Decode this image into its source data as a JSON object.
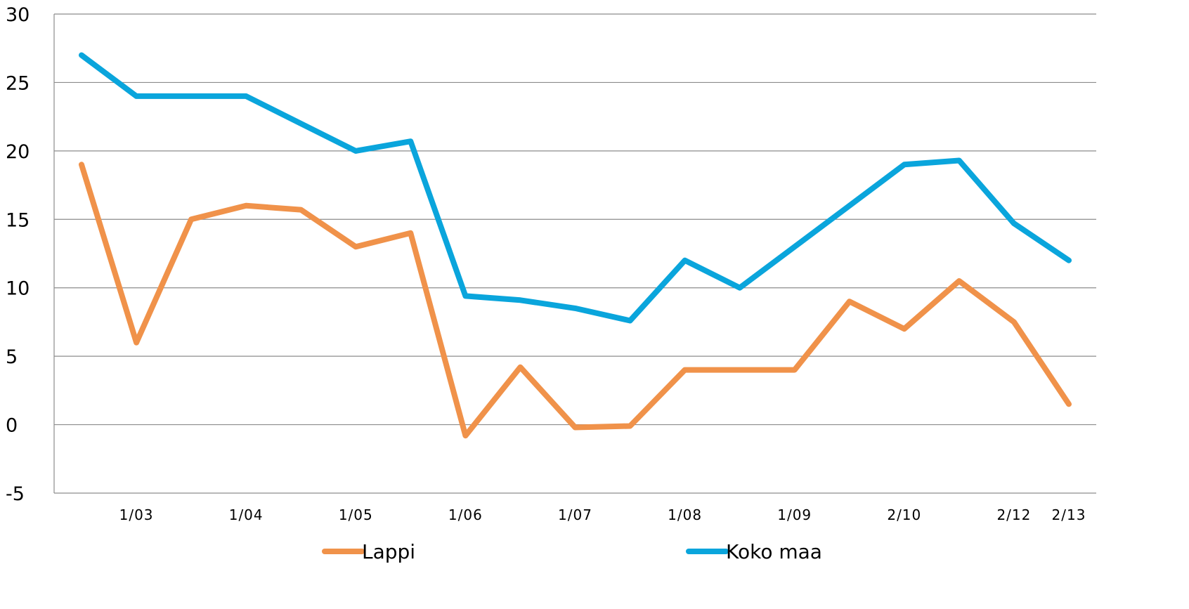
{
  "chart_data": {
    "type": "line",
    "title": "",
    "xlabel": "",
    "ylabel": "",
    "ylim": [
      -5,
      30
    ],
    "yticks": [
      "30",
      "25",
      "20",
      "15",
      "10",
      "5",
      "0",
      "-5"
    ],
    "ytick_values": [
      30,
      25,
      20,
      15,
      10,
      5,
      0,
      -5
    ],
    "grid": true,
    "legend_position": "bottom",
    "x_tick_labels": [
      "1/03",
      "1/04",
      "1/05",
      "1/06",
      "1/07",
      "1/08",
      "1/09",
      "2/10",
      "2/12",
      "2/13"
    ],
    "x_tick_points": [
      1,
      3,
      5,
      7,
      9,
      11,
      13,
      15,
      17,
      18
    ],
    "point_count": 19,
    "series": [
      {
        "name": "Lappi",
        "color": "#f0924a",
        "values": [
          19,
          6,
          15,
          16,
          15.7,
          13,
          14,
          -0.8,
          4.2,
          -0.2,
          -0.1,
          4,
          4,
          4,
          9,
          7,
          10.5,
          7.5,
          1.5
        ]
      },
      {
        "name": "Koko maa",
        "color": "#0aa5dc",
        "values": [
          27,
          24,
          24,
          24,
          22,
          20,
          20.7,
          9.4,
          9.1,
          8.5,
          7.6,
          12,
          10,
          13,
          16,
          19,
          19.3,
          14.7,
          12
        ]
      }
    ]
  }
}
